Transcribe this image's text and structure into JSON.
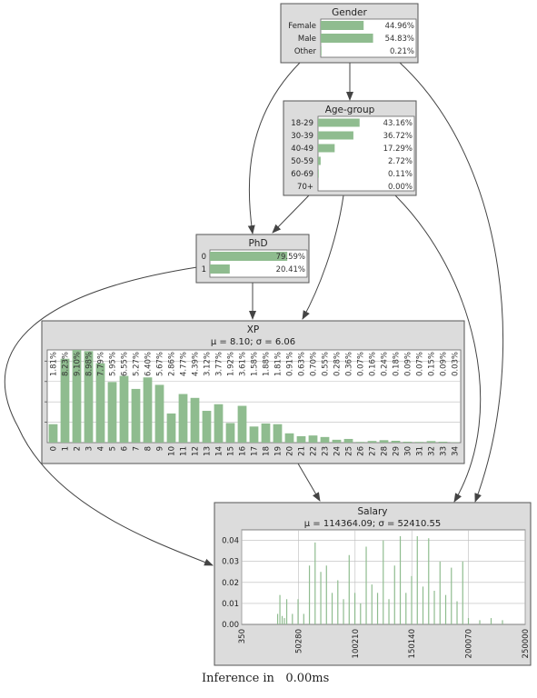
{
  "nodes": {
    "gender": {
      "title": "Gender",
      "states": [
        {
          "label": "Female",
          "value": 44.96,
          "text": "44.96%"
        },
        {
          "label": "Male",
          "value": 54.83,
          "text": "54.83%"
        },
        {
          "label": "Other",
          "value": 0.21,
          "text": "0.21%"
        }
      ]
    },
    "age": {
      "title": "Age-group",
      "states": [
        {
          "label": "18-29",
          "value": 43.16,
          "text": "43.16%"
        },
        {
          "label": "30-39",
          "value": 36.72,
          "text": "36.72%"
        },
        {
          "label": "40-49",
          "value": 17.29,
          "text": "17.29%"
        },
        {
          "label": "50-59",
          "value": 2.72,
          "text": "2.72%"
        },
        {
          "label": "60-69",
          "value": 0.11,
          "text": "0.11%"
        },
        {
          "label": "70+",
          "value": 0.0,
          "text": "0.00%"
        }
      ]
    },
    "phd": {
      "title": "PhD",
      "states": [
        {
          "label": "0",
          "value": 79.59,
          "text": "79.59%"
        },
        {
          "label": "1",
          "value": 20.41,
          "text": "20.41%"
        }
      ]
    },
    "xp": {
      "title": "XP",
      "subtitle": "μ = 8.10; σ = 6.06",
      "categories": [
        "0",
        "1",
        "2",
        "3",
        "4",
        "5",
        "6",
        "7",
        "8",
        "9",
        "10",
        "11",
        "12",
        "13",
        "14",
        "15",
        "16",
        "17",
        "18",
        "19",
        "20",
        "21",
        "22",
        "23",
        "24",
        "25",
        "26",
        "27",
        "28",
        "29",
        "30",
        "31",
        "32",
        "33",
        "34"
      ],
      "values": [
        1.81,
        8.23,
        9.1,
        8.98,
        7.79,
        5.95,
        6.55,
        5.27,
        6.4,
        5.67,
        2.86,
        4.77,
        4.39,
        3.12,
        3.77,
        1.92,
        3.61,
        1.58,
        1.88,
        1.81,
        0.91,
        0.63,
        0.7,
        0.55,
        0.28,
        0.36,
        0.07,
        0.16,
        0.24,
        0.18,
        0.09,
        0.07,
        0.15,
        0.09,
        0.03
      ],
      "texts": [
        "1.81%",
        "8.23%",
        "9.10%",
        "8.98%",
        "7.79%",
        "5.95%",
        "6.55%",
        "5.27%",
        "6.40%",
        "5.67%",
        "2.86%",
        "4.77%",
        "4.39%",
        "3.12%",
        "3.77%",
        "1.92%",
        "3.61%",
        "1.58%",
        "1.88%",
        "1.81%",
        "0.91%",
        "0.63%",
        "0.70%",
        "0.55%",
        "0.28%",
        "0.36%",
        "0.07%",
        "0.16%",
        "0.24%",
        "0.18%",
        "0.09%",
        "0.07%",
        "0.15%",
        "0.09%",
        "0.03%"
      ]
    },
    "salary": {
      "title": "Salary",
      "subtitle": "μ = 114364.09; σ = 52410.55",
      "yticks": [
        "0.00",
        "0.01",
        "0.02",
        "0.03",
        "0.04"
      ],
      "xticks": [
        "350",
        "50280",
        "100210",
        "150140",
        "200070",
        "250000"
      ]
    }
  },
  "chart_data": [
    {
      "type": "bar",
      "categories": [
        "0",
        "1",
        "2",
        "3",
        "4",
        "5",
        "6",
        "7",
        "8",
        "9",
        "10",
        "11",
        "12",
        "13",
        "14",
        "15",
        "16",
        "17",
        "18",
        "19",
        "20",
        "21",
        "22",
        "23",
        "24",
        "25",
        "26",
        "27",
        "28",
        "29",
        "30",
        "31",
        "32",
        "33",
        "34"
      ],
      "values": [
        1.81,
        8.23,
        9.1,
        8.98,
        7.79,
        5.95,
        6.55,
        5.27,
        6.4,
        5.67,
        2.86,
        4.77,
        4.39,
        3.12,
        3.77,
        1.92,
        3.61,
        1.58,
        1.88,
        1.81,
        0.91,
        0.63,
        0.7,
        0.55,
        0.28,
        0.36,
        0.07,
        0.16,
        0.24,
        0.18,
        0.09,
        0.07,
        0.15,
        0.09,
        0.03
      ],
      "title": "XP",
      "ylim": [
        0,
        10
      ],
      "grid": true
    },
    {
      "type": "bar",
      "title": "Salary",
      "xlim": [
        350,
        250000
      ],
      "ylim": [
        0,
        0.045
      ],
      "grid": true,
      "x": [
        32000,
        34000,
        36000,
        38000,
        40000,
        45000,
        50000,
        55000,
        60000,
        65000,
        70000,
        75000,
        80000,
        85000,
        90000,
        95000,
        100000,
        105000,
        110000,
        115000,
        120000,
        125000,
        130000,
        135000,
        140000,
        145000,
        150000,
        155000,
        160000,
        165000,
        170000,
        175000,
        180000,
        185000,
        190000,
        195000,
        200000,
        210000,
        220000,
        230000
      ],
      "values": [
        0.005,
        0.014,
        0.004,
        0.003,
        0.012,
        0.005,
        0.012,
        0.005,
        0.028,
        0.039,
        0.025,
        0.028,
        0.015,
        0.021,
        0.012,
        0.033,
        0.015,
        0.01,
        0.037,
        0.019,
        0.015,
        0.04,
        0.012,
        0.028,
        0.042,
        0.015,
        0.023,
        0.042,
        0.018,
        0.041,
        0.016,
        0.03,
        0.014,
        0.027,
        0.011,
        0.03,
        0.003,
        0.002,
        0.003,
        0.002
      ]
    }
  ],
  "footer": {
    "label": "Inference in",
    "value": "0.00ms"
  }
}
